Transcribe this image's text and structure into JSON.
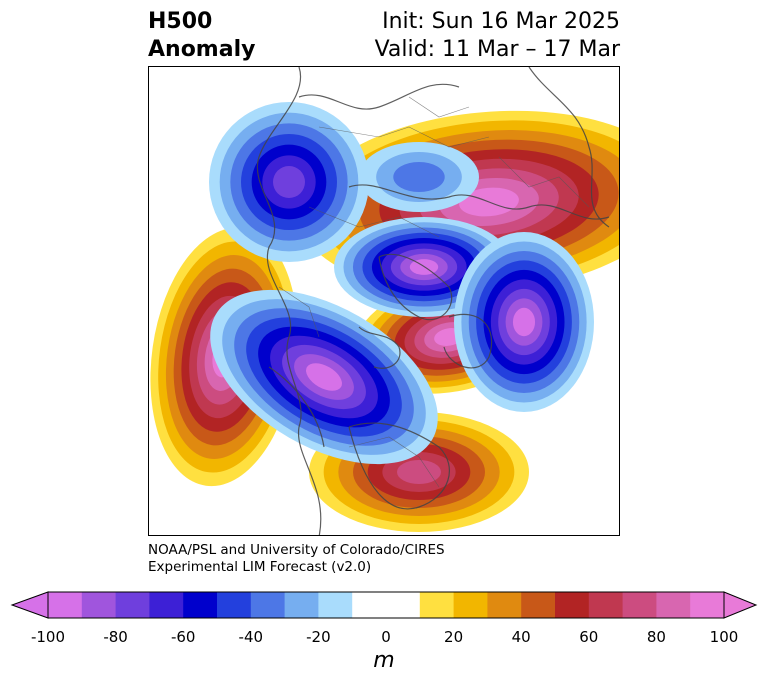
{
  "title": {
    "left_line1": "H500",
    "left_line2": "Anomaly",
    "init": "Init: Sun 16 Mar 2025",
    "valid": "Valid: 11 Mar – 17 Mar"
  },
  "credits": {
    "line1": "NOAA/PSL and University of Colorado/CIRES",
    "line2": "Experimental LIM Forecast (v2.0)"
  },
  "colorbar": {
    "unit": "m",
    "tick_labels": [
      "-100",
      "-80",
      "-60",
      "-40",
      "-20",
      "0",
      "20",
      "40",
      "60",
      "80",
      "100"
    ],
    "colors": [
      "#d671e8",
      "#a055dd",
      "#6f3fdd",
      "#3d20d6",
      "#0000cc",
      "#2340dd",
      "#4d77e6",
      "#76aef0",
      "#a9dcfc",
      "#ffffff",
      "#ffffff",
      "#ffe040",
      "#f2b600",
      "#e08a10",
      "#c85818",
      "#b22424",
      "#c03850",
      "#cc4c80",
      "#d866b0",
      "#e87ad8"
    ]
  },
  "anomaly_palette": {
    "neg_strong": "#d671e8",
    "neg_mid": "#0000cc",
    "neg_weak": "#a9dcfc",
    "pos_weak": "#ffe040",
    "pos_mid": "#b22424",
    "pos_strong": "#e87ad8"
  }
}
